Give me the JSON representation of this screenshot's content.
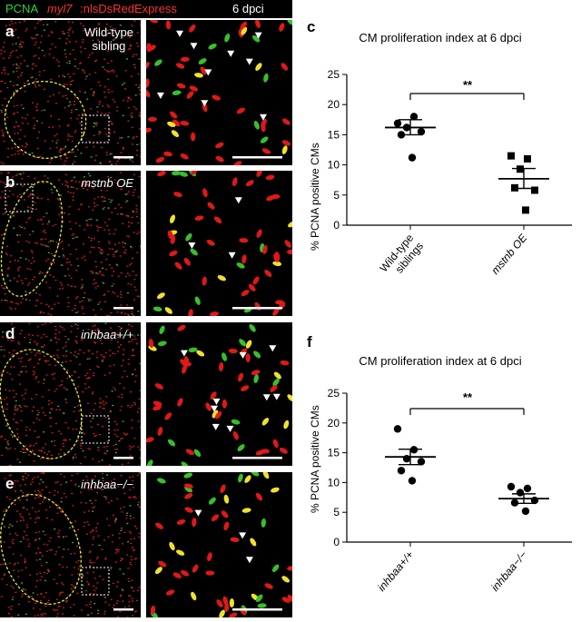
{
  "header": {
    "pcna": "PCNA",
    "myl7": "myl7",
    "reporter": ":nlsDsRedExpress",
    "time": "6 dpci"
  },
  "panels": [
    {
      "letter": "a",
      "text": "Wild-type\nsibling",
      "italic": false
    },
    {
      "letter": "b",
      "text": "mstnb OE",
      "italic": true
    },
    {
      "letter": "d",
      "text": "inhbaa+/+",
      "italic": true
    },
    {
      "letter": "e",
      "text": "inhbaa−/−",
      "italic": true
    }
  ],
  "charts": {
    "c": {
      "letter": "c",
      "title": "CM proliferation index at 6 dpci",
      "ylabel": "% PCNA positive CMs",
      "yticks": [
        "0",
        "5",
        "10",
        "15",
        "20",
        "25"
      ],
      "categories": [
        "Wild-type siblings",
        "mstnb OE"
      ],
      "significance": "**"
    },
    "f": {
      "letter": "f",
      "title": "CM proliferation index at 6 dpci",
      "ylabel": "% PCNA positive CMs",
      "yticks": [
        "0",
        "5",
        "10",
        "15",
        "20",
        "25"
      ],
      "categories": [
        "inhbaa+/+",
        "inhbaa−/−"
      ],
      "significance": "**"
    }
  },
  "chart_data": [
    {
      "type": "scatter",
      "title": "CM proliferation index at 6 dpci",
      "ylabel": "% PCNA positive CMs",
      "ylim": [
        0,
        25
      ],
      "categories": [
        "Wild-type siblings",
        "mstnb OE"
      ],
      "series": [
        {
          "name": "Wild-type siblings",
          "values": [
            16.9,
            18.0,
            16.2,
            15.5,
            15.0,
            11.2
          ],
          "mean": 16.2,
          "sem_low": 15.0,
          "sem_high": 17.5
        },
        {
          "name": "mstnb OE",
          "values": [
            11.5,
            11.0,
            9.3,
            5.8,
            6.2,
            2.5
          ],
          "mean": 7.7,
          "sem_low": 6.1,
          "sem_high": 9.4
        }
      ],
      "significance": "**"
    },
    {
      "type": "scatter",
      "title": "CM proliferation index at 6 dpci",
      "ylabel": "% PCNA positive CMs",
      "ylim": [
        0,
        25
      ],
      "categories": [
        "inhbaa+/+",
        "inhbaa−/−"
      ],
      "series": [
        {
          "name": "inhbaa+/+",
          "values": [
            19.0,
            15.5,
            14.0,
            13.5,
            12.0,
            10.3
          ],
          "mean": 14.3,
          "sem_low": 13.0,
          "sem_high": 15.6
        },
        {
          "name": "inhbaa−/−",
          "values": [
            9.3,
            9.0,
            8.3,
            7.0,
            6.6,
            5.2
          ],
          "mean": 7.3,
          "sem_low": 6.5,
          "sem_high": 8.1
        }
      ],
      "significance": "**"
    }
  ]
}
